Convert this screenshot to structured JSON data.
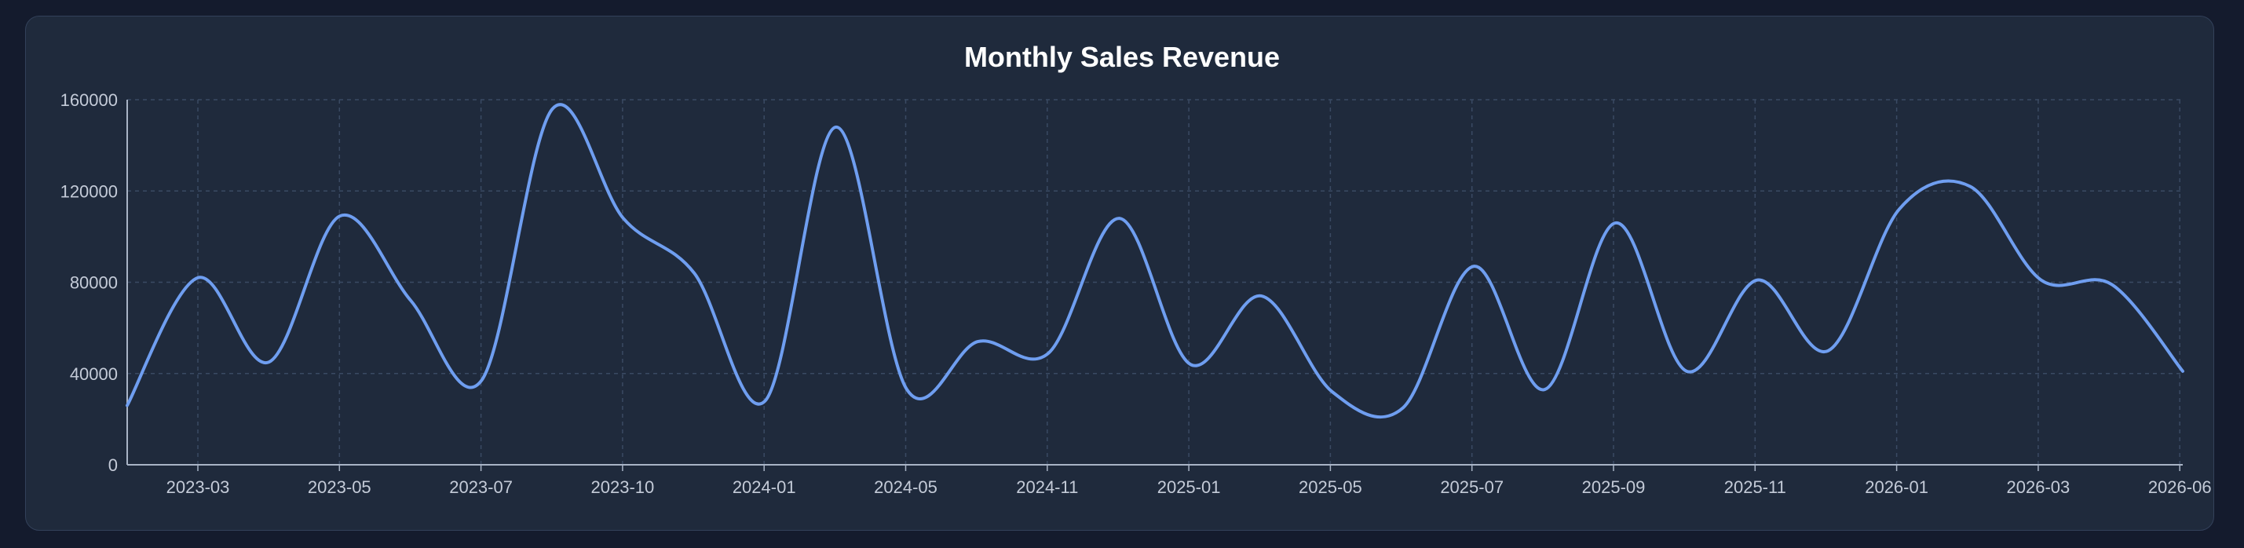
{
  "chart_data": {
    "type": "line",
    "title": "Monthly Sales Revenue",
    "xlabel": "",
    "ylabel": "",
    "ylim": [
      0,
      160000
    ],
    "grid": true,
    "colors": {
      "line": "#6f9ef0",
      "grid": "#3a4a63",
      "axis": "#a9b4c6"
    },
    "x_tick_labels": [
      "2023-03",
      "2023-05",
      "2023-07",
      "2023-10",
      "2024-01",
      "2024-05",
      "2024-11",
      "2025-01",
      "2025-05",
      "2025-07",
      "2025-09",
      "2025-11",
      "2026-01",
      "2026-03",
      "2026-06"
    ],
    "y_tick_labels": [
      "0",
      "40000",
      "80000",
      "120000",
      "160000"
    ],
    "series": [
      {
        "values": [
          26000,
          82000,
          45000,
          109000,
          72000,
          37000,
          156000,
          108000,
          84000,
          28000,
          148000,
          33000,
          54000,
          49000,
          108000,
          44000,
          74000,
          32000,
          25000,
          87000,
          33000,
          106000,
          41000,
          81000,
          50000,
          112000,
          122000,
          81000,
          79000,
          41000
        ]
      }
    ]
  }
}
